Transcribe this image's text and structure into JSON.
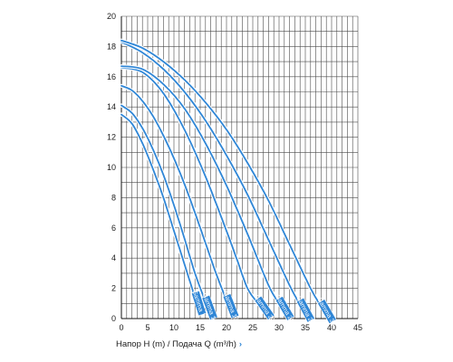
{
  "chart_data": {
    "type": "line",
    "title": "",
    "xlabel": "Напор H (m) / Подача Q (m³/h)",
    "ylabel": "",
    "xlim": [
      0,
      45
    ],
    "ylim": [
      0,
      20
    ],
    "x_ticks": [
      0,
      5,
      10,
      15,
      20,
      25,
      30,
      35,
      40,
      45
    ],
    "y_ticks": [
      0,
      2,
      4,
      6,
      8,
      10,
      12,
      14,
      16,
      18,
      20
    ],
    "grid": true,
    "series_color": "#2f86d6",
    "label_color": "#2f86d6",
    "series": [
      {
        "name": "Gamma 7",
        "x": [
          0,
          2,
          4,
          6,
          8,
          10,
          12,
          14
        ],
        "y": [
          13.5,
          12.9,
          11.6,
          9.9,
          8.0,
          5.8,
          3.6,
          1.4
        ]
      },
      {
        "name": "Gamma 11",
        "x": [
          0,
          2,
          4,
          6,
          8,
          10,
          12,
          14,
          16
        ],
        "y": [
          14.1,
          13.6,
          12.6,
          11.2,
          9.5,
          7.5,
          5.3,
          3.0,
          1.1
        ]
      },
      {
        "name": "Gamma 15",
        "x": [
          0,
          2,
          4,
          6,
          8,
          10,
          12,
          14,
          16,
          18,
          20
        ],
        "y": [
          15.4,
          15.1,
          14.4,
          13.4,
          12.1,
          10.6,
          8.9,
          7.0,
          5.0,
          3.0,
          1.2
        ]
      },
      {
        "name": "Gamma 20",
        "x": [
          0,
          4,
          8,
          12,
          16,
          20,
          22,
          24,
          26
        ],
        "y": [
          16.6,
          16.3,
          14.9,
          12.5,
          9.4,
          5.8,
          3.9,
          2.0,
          1.0
        ]
      },
      {
        "name": "Gamma 22",
        "x": [
          0,
          4,
          8,
          12,
          16,
          20,
          24,
          28,
          30
        ],
        "y": [
          16.7,
          16.5,
          15.5,
          13.9,
          11.6,
          8.8,
          5.6,
          2.2,
          1.0
        ]
      },
      {
        "name": "Gamma 28",
        "x": [
          0,
          4,
          8,
          12,
          16,
          20,
          24,
          28,
          32,
          34
        ],
        "y": [
          18.3,
          17.6,
          16.5,
          15.0,
          13.1,
          10.8,
          8.2,
          5.2,
          2.2,
          0.9
        ]
      },
      {
        "name": "Gamma 33",
        "x": [
          0,
          4,
          8,
          12,
          16,
          20,
          24,
          28,
          32,
          36,
          38
        ],
        "y": [
          18.4,
          17.9,
          17.0,
          15.8,
          14.3,
          12.5,
          10.3,
          7.8,
          4.9,
          2.0,
          0.8
        ]
      }
    ]
  }
}
